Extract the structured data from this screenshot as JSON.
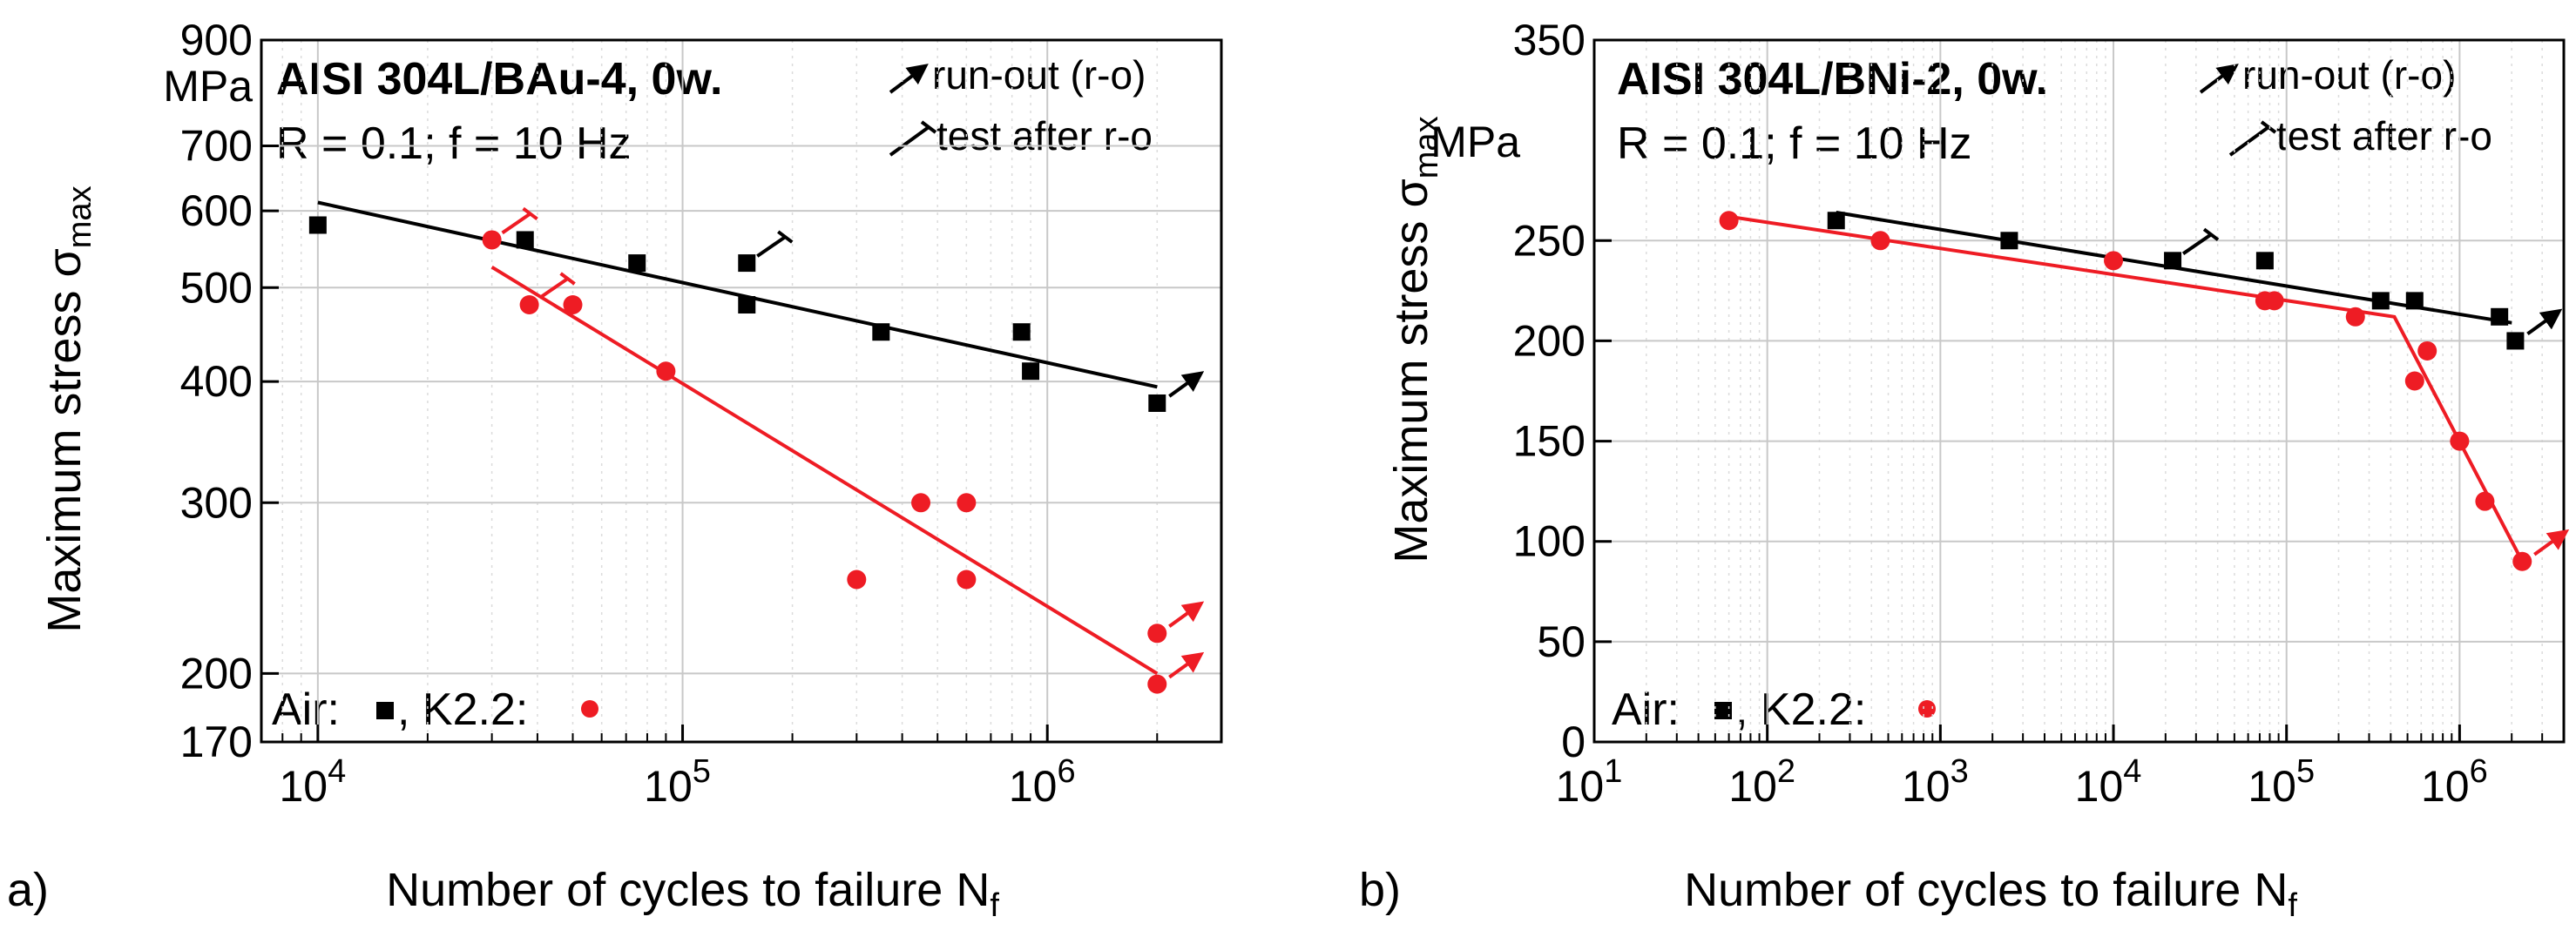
{
  "chart_data": [
    {
      "panel": "a)",
      "type": "scatter",
      "title": "AISI 304L/BAu-4, 0w.",
      "conditions": "R = 0.1; f = 10 Hz",
      "xlabel": "Number of cycles to failure N",
      "xlabel_sub": "f",
      "ylabel": "Maximum stress σ",
      "ylabel_sub": "max",
      "yunit": "MPa",
      "xscale": "log",
      "yscale": "log",
      "xlim": [
        7000,
        3000000
      ],
      "ylim": [
        170,
        900
      ],
      "xticks": [
        {
          "value": 10000,
          "base": "10",
          "exp": "4"
        },
        {
          "value": 100000,
          "base": "10",
          "exp": "5"
        },
        {
          "value": 1000000,
          "base": "10",
          "exp": "6"
        }
      ],
      "yticks": [
        {
          "value": 170,
          "label": "170"
        },
        {
          "value": 200,
          "label": "200"
        },
        {
          "value": 300,
          "label": "300"
        },
        {
          "value": 400,
          "label": "400"
        },
        {
          "value": 500,
          "label": "500"
        },
        {
          "value": 600,
          "label": "600"
        },
        {
          "value": 700,
          "label": "700"
        },
        {
          "value": 900,
          "label": "900"
        }
      ],
      "grid": true,
      "legend": {
        "runout": "run-out (r-o)",
        "test_after": "test after r-o",
        "air_label": "Air:",
        "k22_label": ", K2.2:"
      },
      "series": [
        {
          "name": "Air",
          "marker": "square",
          "color": "#000000",
          "points": [
            {
              "x": 10000,
              "y": 580
            },
            {
              "x": 37000,
              "y": 560
            },
            {
              "x": 75000,
              "y": 530
            },
            {
              "x": 150000,
              "y": 530,
              "test_after_runout": true
            },
            {
              "x": 150000,
              "y": 480
            },
            {
              "x": 350000,
              "y": 450
            },
            {
              "x": 850000,
              "y": 450
            },
            {
              "x": 900000,
              "y": 410
            },
            {
              "x": 2000000,
              "y": 380,
              "runout": true
            }
          ],
          "fit": [
            {
              "x": 10000,
              "y": 612
            },
            {
              "x": 2000000,
              "y": 395
            }
          ]
        },
        {
          "name": "K2.2",
          "marker": "circle",
          "color": "#ee1c24",
          "points": [
            {
              "x": 30000,
              "y": 560,
              "test_after_runout": true
            },
            {
              "x": 38000,
              "y": 480,
              "test_after_runout": true
            },
            {
              "x": 50000,
              "y": 480
            },
            {
              "x": 90000,
              "y": 410
            },
            {
              "x": 300000,
              "y": 250
            },
            {
              "x": 450000,
              "y": 300
            },
            {
              "x": 600000,
              "y": 300
            },
            {
              "x": 600000,
              "y": 250
            },
            {
              "x": 2000000,
              "y": 220,
              "runout": true
            },
            {
              "x": 2000000,
              "y": 195,
              "runout": true
            }
          ],
          "fit": [
            {
              "x": 30000,
              "y": 525
            },
            {
              "x": 2000000,
              "y": 200
            }
          ]
        }
      ]
    },
    {
      "panel": "b)",
      "type": "scatter",
      "title": "AISI 304L/BNi-2, 0w.",
      "conditions": "R = 0.1; f = 10 Hz",
      "xlabel": "Number of cycles to failure N",
      "xlabel_sub": "f",
      "ylabel": "Maximum stress σ",
      "ylabel_sub": "max",
      "yunit": "MPa",
      "xscale": "log",
      "yscale": "linear",
      "xlim": [
        10,
        4000000
      ],
      "ylim": [
        0,
        350
      ],
      "xticks": [
        {
          "value": 10,
          "base": "10",
          "exp": "1"
        },
        {
          "value": 100,
          "base": "10",
          "exp": "2"
        },
        {
          "value": 1000,
          "base": "10",
          "exp": "3"
        },
        {
          "value": 10000,
          "base": "10",
          "exp": "4"
        },
        {
          "value": 100000,
          "base": "10",
          "exp": "5"
        },
        {
          "value": 1000000,
          "base": "10",
          "exp": "6"
        }
      ],
      "yticks": [
        {
          "value": 0,
          "label": "0"
        },
        {
          "value": 50,
          "label": "50"
        },
        {
          "value": 100,
          "label": "100"
        },
        {
          "value": 150,
          "label": "150"
        },
        {
          "value": 200,
          "label": "200"
        },
        {
          "value": 250,
          "label": "250"
        },
        {
          "value": 350,
          "label": "350"
        }
      ],
      "grid": true,
      "legend": {
        "runout": "run-out (r-o)",
        "test_after": "test after r-o",
        "air_label": "Air:",
        "k22_label": ", K2.2:"
      },
      "series": [
        {
          "name": "Air",
          "marker": "square",
          "color": "#000000",
          "points": [
            {
              "x": 250,
              "y": 260
            },
            {
              "x": 2500,
              "y": 250
            },
            {
              "x": 22000,
              "y": 240,
              "test_after_runout": true
            },
            {
              "x": 75000,
              "y": 240
            },
            {
              "x": 350000,
              "y": 220
            },
            {
              "x": 550000,
              "y": 220
            },
            {
              "x": 1700000,
              "y": 212
            },
            {
              "x": 2100000,
              "y": 200,
              "runout": true
            }
          ],
          "fit": [
            {
              "x": 250,
              "y": 264
            },
            {
              "x": 2000000,
              "y": 209
            }
          ]
        },
        {
          "name": "K2.2",
          "marker": "circle",
          "color": "#ee1c24",
          "points": [
            {
              "x": 60,
              "y": 260
            },
            {
              "x": 450,
              "y": 250
            },
            {
              "x": 10000,
              "y": 240
            },
            {
              "x": 75000,
              "y": 220
            },
            {
              "x": 85000,
              "y": 220
            },
            {
              "x": 250000,
              "y": 212
            },
            {
              "x": 550000,
              "y": 180
            },
            {
              "x": 650000,
              "y": 195
            },
            {
              "x": 1000000,
              "y": 150
            },
            {
              "x": 1400000,
              "y": 120
            },
            {
              "x": 2300000,
              "y": 90,
              "runout": true
            }
          ],
          "fit": [
            {
              "x": 60,
              "y": 262
            },
            {
              "x": 420000,
              "y": 212
            },
            {
              "x": 2300000,
              "y": 90
            }
          ]
        }
      ]
    }
  ]
}
